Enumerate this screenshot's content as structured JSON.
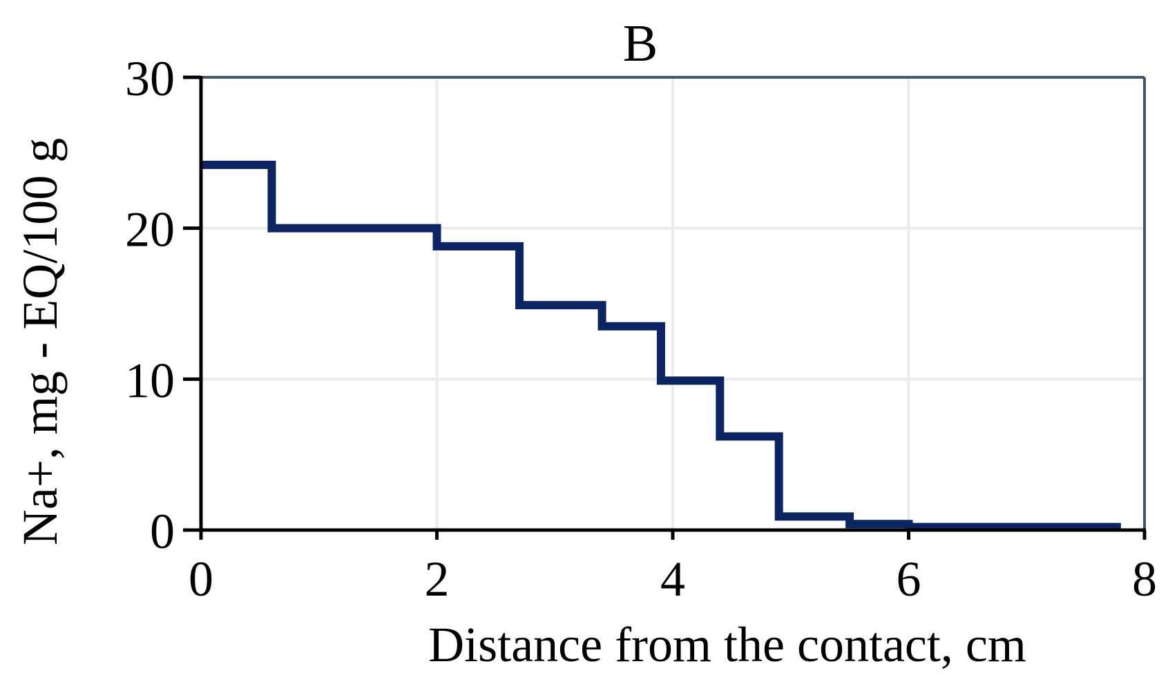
{
  "chart_data": {
    "type": "line",
    "step": "post",
    "title": "B",
    "xlabel": "Distance from the contact, cm",
    "ylabel": "Na+, mg - EQ/100 g",
    "xlim": [
      0,
      8
    ],
    "ylim": [
      0,
      30
    ],
    "x_ticks": [
      0,
      2,
      4,
      6,
      8
    ],
    "y_ticks": [
      0,
      10,
      20,
      30
    ],
    "grid": true,
    "series": [
      {
        "color": "#0c2461",
        "x": [
          0,
          0.6,
          2.0,
          2.7,
          3.4,
          3.9,
          4.4,
          4.9,
          5.5,
          6.0,
          7.8
        ],
        "y": [
          24.2,
          20.0,
          18.8,
          14.9,
          13.5,
          9.9,
          6.2,
          0.9,
          0.4,
          0.2,
          0.2
        ]
      }
    ],
    "colors": {
      "series": "#0c2461",
      "grid": "#ececec",
      "axis": "#000000",
      "frame": "#44546a"
    }
  }
}
